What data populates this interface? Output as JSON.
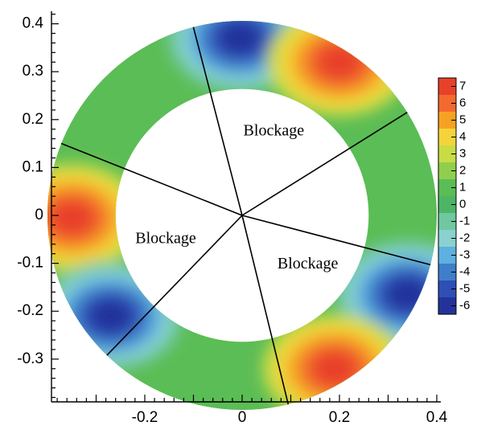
{
  "chart_data": {
    "type": "heatmap",
    "title": "",
    "xlabel": "",
    "ylabel": "",
    "xlim": [
      -0.39,
      0.42
    ],
    "ylim": [
      -0.39,
      0.42
    ],
    "x_ticks": [
      -0.2,
      0,
      0.2,
      0.4
    ],
    "x_tick_labels": [
      "-0.2",
      "0",
      "0.2",
      "0.4"
    ],
    "y_ticks": [
      0.4,
      0.3,
      0.2,
      0.1,
      0,
      -0.1,
      -0.2,
      -0.3
    ],
    "y_tick_labels": [
      "0.4",
      "0.3",
      "0.2",
      "0.1",
      "0",
      "-0.1",
      "-0.2",
      "-0.3"
    ],
    "annulus": {
      "outer_radius": 0.4,
      "inner_radius": 0.26
    },
    "legend": {
      "levels": [
        7,
        6,
        5,
        4,
        3,
        2,
        1,
        0,
        -1,
        -2,
        -3,
        -4,
        -5,
        -6
      ],
      "labels": [
        "7",
        "6",
        "5",
        "4",
        "3",
        "2",
        "1",
        "0",
        "-1",
        "-2",
        "-3",
        "-4",
        "-5",
        "-6"
      ],
      "colors": [
        "#e8412a",
        "#f26a2f",
        "#f5a224",
        "#f4d43b",
        "#c8dc46",
        "#90cf4e",
        "#5bbd55",
        "#4db566",
        "#6fc8a1",
        "#8ad1cf",
        "#5eb0e0",
        "#3f7fc9",
        "#2e4fb5",
        "#23339b"
      ],
      "placement": "right"
    },
    "background_level": 1,
    "hot_spots": [
      {
        "x": -0.005,
        "y": 0.37,
        "value": -6
      },
      {
        "x": 0.2,
        "y": 0.32,
        "value": 7
      },
      {
        "x": -0.35,
        "y": -0.005,
        "value": 7
      },
      {
        "x": -0.27,
        "y": -0.21,
        "value": -6
      },
      {
        "x": 0.34,
        "y": -0.165,
        "value": -6
      },
      {
        "x": 0.19,
        "y": -0.32,
        "value": 7
      }
    ],
    "divider_lines": [
      {
        "angle_deg": 104.5
      },
      {
        "angle_deg": 32
      },
      {
        "angle_deg": 158.3
      },
      {
        "angle_deg": 226
      },
      {
        "angle_deg": 283.7
      },
      {
        "angle_deg": 345.3
      }
    ],
    "annotations": [
      {
        "text": "Blockage",
        "x": 0.065,
        "y": 0.175
      },
      {
        "text": "Blockage",
        "x": -0.157,
        "y": -0.05
      },
      {
        "text": "Blockage",
        "x": 0.135,
        "y": -0.103
      }
    ]
  }
}
